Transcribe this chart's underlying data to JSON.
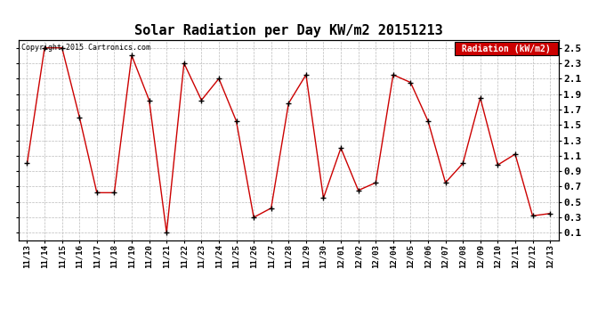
{
  "title": "Solar Radiation per Day KW/m2 20151213",
  "copyright": "Copyright 2015 Cartronics.com",
  "legend_label": "Radiation (kW/m2)",
  "x_labels": [
    "11/13",
    "11/14",
    "11/15",
    "11/16",
    "11/17",
    "11/18",
    "11/19",
    "11/20",
    "11/21",
    "11/22",
    "11/23",
    "11/24",
    "11/25",
    "11/26",
    "11/27",
    "11/28",
    "11/29",
    "11/30",
    "12/01",
    "12/02",
    "12/03",
    "12/04",
    "12/05",
    "12/06",
    "12/07",
    "12/08",
    "12/09",
    "12/10",
    "12/11",
    "12/12",
    "12/13"
  ],
  "y_values": [
    1.0,
    2.5,
    2.5,
    1.6,
    0.62,
    0.62,
    2.4,
    1.82,
    0.1,
    2.3,
    1.82,
    2.1,
    1.55,
    0.3,
    0.42,
    1.78,
    2.15,
    0.55,
    1.2,
    0.65,
    0.75,
    2.15,
    2.05,
    1.55,
    0.75,
    1.0,
    1.85,
    0.98,
    1.12,
    0.32,
    0.35
  ],
  "line_color": "#cc0000",
  "marker_color": "#000000",
  "bg_color": "#ffffff",
  "grid_color": "#aaaaaa",
  "ylim": [
    0.0,
    2.6
  ],
  "yticks": [
    0.1,
    0.3,
    0.5,
    0.7,
    0.9,
    1.1,
    1.3,
    1.5,
    1.7,
    1.9,
    2.1,
    2.3,
    2.5
  ],
  "legend_bg": "#cc0000",
  "legend_text_color": "#ffffff"
}
